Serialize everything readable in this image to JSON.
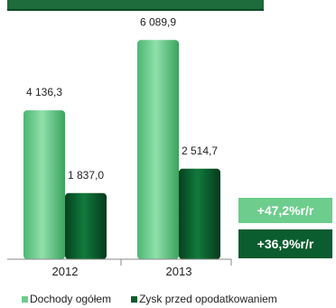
{
  "chart_data": {
    "type": "bar",
    "categories": [
      "2012",
      "2013"
    ],
    "series": [
      {
        "name": "Dochody ogółem",
        "values": [
          4136.3,
          6089.9
        ],
        "labels": [
          "4 136,3",
          "6 089,9"
        ]
      },
      {
        "name": "Zysk przed opodatkowaniem",
        "values": [
          1837.0,
          2514.7
        ],
        "labels": [
          "1 837,0",
          "2 514,7"
        ]
      }
    ],
    "ylim": [
      0,
      7000
    ],
    "grid": false,
    "legend_position": "bottom",
    "annotations": [
      "+47,2%r/r",
      "+36,9%r/r"
    ]
  },
  "colors": {
    "series1": "#6ccd8c",
    "series2": "#0b5c2e",
    "badge1": "#6ccd8c",
    "badge2": "#0b5c2e",
    "header": "#1e6b3c"
  }
}
